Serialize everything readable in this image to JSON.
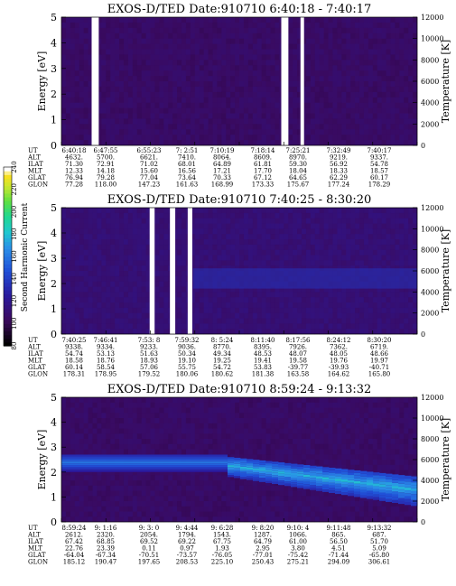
{
  "colorbar": {
    "title": "Second Harmonic Current",
    "ticks": [
      "80",
      "100",
      "120",
      "140",
      "160",
      "180",
      "200",
      "220",
      "240"
    ],
    "colors": [
      "#000000",
      "#3b0a5e",
      "#2a1a9e",
      "#2050d8",
      "#2a90e8",
      "#20c8d0",
      "#20d890",
      "#60e040",
      "#c8e830",
      "#f8e020",
      "#ffffff"
    ]
  },
  "panels": [
    {
      "title": "EXOS-D/TED",
      "date_label": "Date:910710",
      "time_range": "6:40:18 - 7:40:17",
      "y_left_label": "Energy [eV]",
      "y_right_label": "Temperature [K]",
      "y_left_ticks": [
        "0",
        "1",
        "2",
        "3",
        "4",
        "5"
      ],
      "y_right_ticks": [
        "0",
        "2000",
        "4000",
        "6000",
        "8000",
        "10000",
        "12000"
      ],
      "row_labels": [
        "UT",
        "ALT",
        "ILAT",
        "MLT",
        "GLAT",
        "GLON"
      ],
      "columns": [
        [
          "6:40:18",
          "4632.",
          "71.30",
          "12.33",
          "76.94",
          "77.28"
        ],
        [
          "6:47:55",
          "5700.",
          "72.91",
          "14.18",
          "79.28",
          "118.00"
        ],
        [
          "6:55:23",
          "6621.",
          "71.02",
          "15.60",
          "77.04",
          "147.23"
        ],
        [
          "7: 2:51",
          "7410.",
          "68.01",
          "16.56",
          "73.64",
          "161.63"
        ],
        [
          "7:10:19",
          "8064.",
          "64.89",
          "17.21",
          "70.33",
          "168.99"
        ],
        [
          "7:18:14",
          "8609.",
          "61.81",
          "17.70",
          "67.12",
          "173.33"
        ],
        [
          "7:25:21",
          "8970.",
          "59.30",
          "18.04",
          "64.65",
          "175.67"
        ],
        [
          "7:32:49",
          "9219.",
          "56.92",
          "18.33",
          "62.29",
          "177.24"
        ],
        [
          "7:40:17",
          "9337.",
          "54.78",
          "18.57",
          "60.17",
          "178.29"
        ]
      ]
    },
    {
      "title": "EXOS-D/TED",
      "date_label": "Date:910710",
      "time_range": "7:40:25 - 8:30:20",
      "y_left_label": "Energy [eV]",
      "y_right_label": "Temperature [K]",
      "y_left_ticks": [
        "0",
        "1",
        "2",
        "3",
        "4",
        "5"
      ],
      "y_right_ticks": [
        "0",
        "2000",
        "4000",
        "6000",
        "8000",
        "10000",
        "12000"
      ],
      "row_labels": [
        "UT",
        "ALT",
        "ILAT",
        "MLT",
        "GLAT",
        "GLON"
      ],
      "columns": [
        [
          "7:40:25",
          "9338.",
          "54.74",
          "18.58",
          "60.14",
          "178.31"
        ],
        [
          "7:46:41",
          "9334.",
          "53.13",
          "18.76",
          "58.54",
          "178.95"
        ],
        [
          "7:53: 8",
          "9233.",
          "51.63",
          "18.93",
          "57.06",
          "179.52"
        ],
        [
          "7:59:32",
          "9036.",
          "50.34",
          "19.10",
          "55.75",
          "180.06"
        ],
        [
          "8: 5:24",
          "8770.",
          "49.34",
          "19.25",
          "54.72",
          "180.62"
        ],
        [
          "8:11:40",
          "8395.",
          "48.53",
          "19.41",
          "53.83",
          "181.38"
        ],
        [
          "8:17:56",
          "7926.",
          "48.07",
          "19.58",
          "-39.77",
          "163.58"
        ],
        [
          "8:24:12",
          "7362.",
          "48.05",
          "19.76",
          "-39.93",
          "164.62"
        ],
        [
          "8:30:20",
          "6719.",
          "48.66",
          "19.97",
          "-40.71",
          "165.80"
        ]
      ]
    },
    {
      "title": "EXOS-D/TED",
      "date_label": "Date:910710",
      "time_range": "8:59:24 - 9:13:32",
      "y_left_label": "Energy [eV]",
      "y_right_label": "Temperature [K]",
      "y_left_ticks": [
        "0",
        "1",
        "2",
        "3",
        "4",
        "5"
      ],
      "y_right_ticks": [
        "0",
        "2000",
        "4000",
        "6000",
        "8000",
        "10000",
        "12000"
      ],
      "row_labels": [
        "UT",
        "ALT",
        "ILAT",
        "MLT",
        "GLAT",
        "GLON"
      ],
      "columns": [
        [
          "8:59:24",
          "2612.",
          "67.42",
          "22.76",
          "-64.04",
          "185.12"
        ],
        [
          "9: 1:16",
          "2320.",
          "68.85",
          "23.39",
          "-67.34",
          "190.47"
        ],
        [
          "9: 3: 0",
          "2054.",
          "69.52",
          "0.11",
          "-70.51",
          "197.65"
        ],
        [
          "9: 4:44",
          "1794.",
          "69.22",
          "0.97",
          "-73.57",
          "208.53"
        ],
        [
          "9: 6:28",
          "1543.",
          "67.75",
          "1.93",
          "-76.05",
          "225.10"
        ],
        [
          "9: 8:20",
          "1287.",
          "64.79",
          "2.95",
          "-77.01",
          "250.43"
        ],
        [
          "9:10: 4",
          "1066.",
          "61.00",
          "3.80",
          "-75.42",
          "275.21"
        ],
        [
          "9:11:48",
          "865.",
          "56.50",
          "4.51",
          "-71.44",
          "294.09"
        ],
        [
          "9:13:32",
          "687.",
          "51.70",
          "5.09",
          "-65.80",
          "306.61"
        ]
      ]
    }
  ],
  "chart_data": [
    {
      "type": "heatmap",
      "title": "EXOS-D/TED Date:910710 6:40:18 - 7:40:17",
      "ylabel": "Energy [eV]",
      "ylim": [
        0,
        5
      ],
      "y2label": "Temperature [K]",
      "y2lim": [
        0,
        12000
      ],
      "colorbar_label": "Second Harmonic Current",
      "colorbar_range": [
        80,
        240
      ],
      "x_times": [
        "6:40:18",
        "6:47:55",
        "6:55:23",
        "7: 2:51",
        "7:10:19",
        "7:18:14",
        "7:25:21",
        "7:32:49",
        "7:40:17"
      ],
      "data_gaps_fraction": [
        [
          0.085,
          0.105
        ],
        [
          0.618,
          0.638
        ],
        [
          0.672,
          0.682
        ]
      ],
      "background_level": 105,
      "features": []
    },
    {
      "type": "heatmap",
      "title": "EXOS-D/TED Date:910710 7:40:25 - 8:30:20",
      "ylabel": "Energy [eV]",
      "ylim": [
        0,
        5
      ],
      "y2label": "Temperature [K]",
      "y2lim": [
        0,
        12000
      ],
      "colorbar_label": "Second Harmonic Current",
      "colorbar_range": [
        80,
        240
      ],
      "x_times": [
        "7:40:25",
        "7:46:41",
        "7:53: 8",
        "7:59:32",
        "8: 5:24",
        "8:11:40",
        "8:17:56",
        "8:24:12",
        "8:30:20"
      ],
      "data_gaps_fraction": [
        [
          0.248,
          0.262
        ],
        [
          0.305,
          0.32
        ],
        [
          0.355,
          0.368
        ]
      ],
      "background_level": 110,
      "features": [
        {
          "name": "enhanced band",
          "t_frac": [
            0.37,
            1.0
          ],
          "energy_ev": [
            1.8,
            2.6
          ],
          "level": 135
        }
      ]
    },
    {
      "type": "heatmap",
      "title": "EXOS-D/TED Date:910710 8:59:24 - 9:13:32",
      "ylabel": "Energy [eV]",
      "ylim": [
        0,
        5
      ],
      "y2label": "Temperature [K]",
      "y2lim": [
        0,
        12000
      ],
      "colorbar_label": "Second Harmonic Current",
      "colorbar_range": [
        80,
        240
      ],
      "x_times": [
        "8:59:24",
        "9: 1:16",
        "9: 3: 0",
        "9: 4:44",
        "9: 6:28",
        "9: 8:20",
        "9:10: 4",
        "9:11:48",
        "9:13:32"
      ],
      "data_gaps_fraction": [],
      "background_level": 105,
      "features": [
        {
          "name": "plasma band",
          "t_start": "8:59:24",
          "t_end": "9: 6:00",
          "energy_ev": [
            2.0,
            2.7
          ],
          "level": 160
        },
        {
          "name": "descending band",
          "t_start": "9: 6:00",
          "t_end": "9:13:32",
          "energy_ev_start": [
            1.8,
            2.6
          ],
          "energy_ev_end": [
            0.6,
            1.8
          ],
          "level": 175
        }
      ]
    }
  ]
}
